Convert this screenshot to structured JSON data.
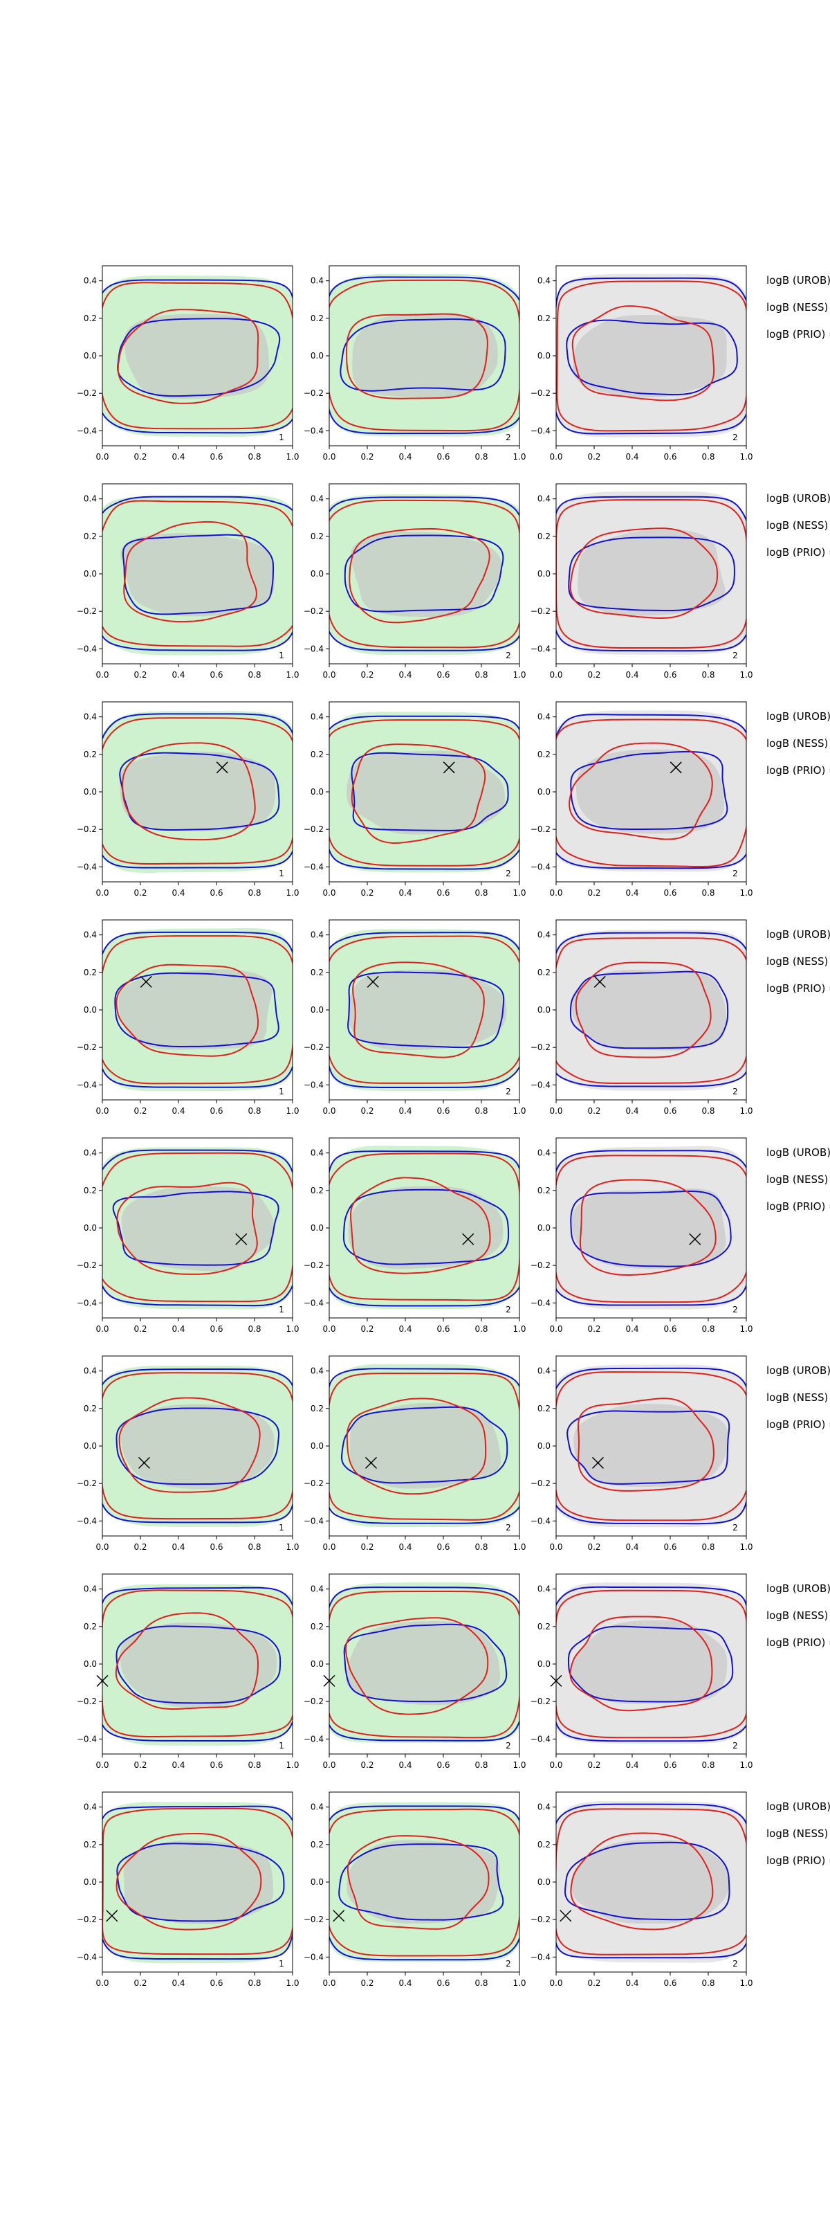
{
  "chart_data": {
    "type": "contour",
    "xlim": [
      0,
      1
    ],
    "ylim": [
      -0.48,
      0.48
    ],
    "x_ticks": [
      "0.0",
      "0.2",
      "0.4",
      "0.6",
      "0.8",
      "1.0"
    ],
    "y_ticks": [
      "0.4",
      "0.2",
      "0.0",
      "−0.2",
      "−0.4"
    ],
    "y_tick_values": [
      0.4,
      0.2,
      0.0,
      -0.2,
      -0.4
    ],
    "x_tick_values": [
      0,
      0.2,
      0.4,
      0.6,
      0.8,
      1.0
    ],
    "colors": {
      "red": "#e0201b",
      "blue": "#1010d8",
      "green_fill": "#cdf2cd",
      "grey_fill": "#e6e6e6",
      "inner_grey": "#c8c8c8",
      "marker": "#000000"
    },
    "legend_lines": [
      "logB (UROB) =",
      "logB (NESS) =",
      "logB (PRIO) ="
    ],
    "panel_labels": [
      "1",
      "2",
      "2"
    ],
    "rows": [
      {
        "marker": null
      },
      {
        "marker": null
      },
      {
        "marker": [
          0.63,
          0.13
        ]
      },
      {
        "marker": [
          0.23,
          0.15
        ]
      },
      {
        "marker": [
          0.73,
          -0.06
        ]
      },
      {
        "marker": [
          0.22,
          -0.09
        ]
      },
      {
        "marker": [
          0.0,
          -0.09
        ]
      },
      {
        "marker": [
          0.05,
          -0.18
        ]
      }
    ]
  }
}
